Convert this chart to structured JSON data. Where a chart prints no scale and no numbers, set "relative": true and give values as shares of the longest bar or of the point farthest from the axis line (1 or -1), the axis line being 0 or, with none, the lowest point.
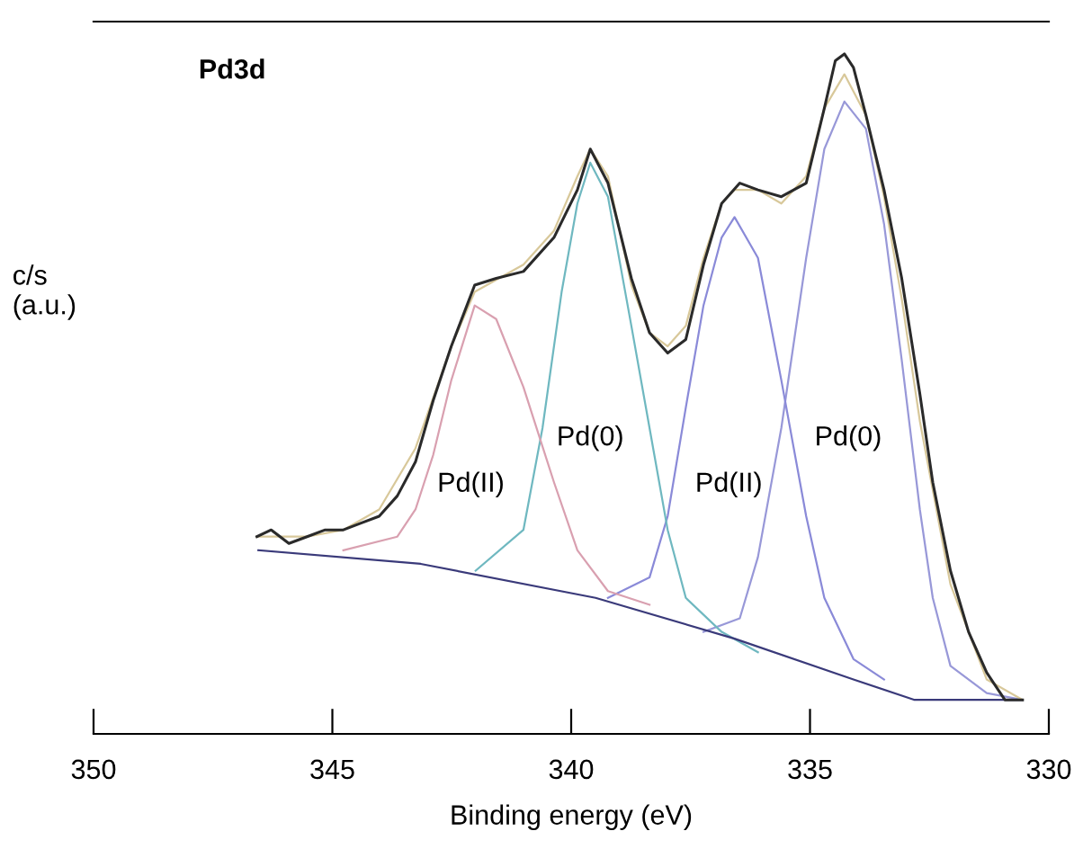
{
  "chart_data": {
    "type": "line",
    "relative": true,
    "xlabel": "Binding energy (eV)",
    "ylabel": "c/s\n(a.u.)",
    "xlim": [
      350,
      330
    ],
    "xticks": [
      350,
      345,
      340,
      335,
      330
    ],
    "grid": false,
    "marker": "none",
    "line_style": "solid",
    "annotations": [
      "Pd3d",
      "Pd(II)",
      "Pd(0)",
      "Pd(II)",
      "Pd(0)"
    ],
    "series": [
      {
        "color": "#9898d8",
        "x": [
          337.23,
          336.47,
          336.09,
          335.6,
          335.08,
          334.7,
          334.28,
          333.83,
          333.45,
          333.08,
          332.7,
          332.43,
          332.06,
          331.3,
          330.55
        ],
        "values": [
          0.15,
          0.17,
          0.26,
          0.45,
          0.7,
          0.86,
          0.93,
          0.89,
          0.75,
          0.55,
          0.33,
          0.2,
          0.1,
          0.06,
          0.05
        ]
      },
      {
        "color": "#8a8ad8",
        "x": [
          339.23,
          338.36,
          337.98,
          337.6,
          337.23,
          336.85,
          336.58,
          336.09,
          335.6,
          335.08,
          334.7,
          334.09,
          333.45
        ],
        "values": [
          0.2,
          0.23,
          0.32,
          0.48,
          0.63,
          0.73,
          0.76,
          0.7,
          0.52,
          0.32,
          0.2,
          0.11,
          0.08
        ]
      },
      {
        "color": "#6fb8c0",
        "x": [
          342.0,
          341.0,
          340.6,
          340.2,
          339.87,
          339.6,
          339.23,
          338.74,
          338.36,
          337.98,
          337.6,
          336.85,
          336.09
        ],
        "values": [
          0.24,
          0.3,
          0.45,
          0.65,
          0.78,
          0.84,
          0.79,
          0.6,
          0.45,
          0.3,
          0.2,
          0.15,
          0.12
        ]
      },
      {
        "color": "#d9a0b0",
        "x": [
          344.77,
          343.64,
          343.26,
          342.89,
          342.51,
          342.02,
          341.57,
          341.0,
          340.36,
          339.87,
          339.23,
          338.36
        ],
        "values": [
          0.27,
          0.29,
          0.33,
          0.41,
          0.52,
          0.63,
          0.61,
          0.51,
          0.37,
          0.27,
          0.21,
          0.19
        ]
      },
      {
        "color": "#3a3a7a",
        "x": [
          346.55,
          343.15,
          339.49,
          336.58,
          334.09,
          332.81,
          330.55
        ],
        "values": [
          0.27,
          0.25,
          0.2,
          0.14,
          0.08,
          0.05,
          0.05
        ]
      },
      {
        "color": "#d8c89a",
        "x": [
          346.58,
          345.53,
          344.77,
          344.02,
          343.26,
          342.51,
          342.02,
          341.0,
          340.36,
          339.87,
          339.6,
          339.23,
          338.74,
          338.36,
          337.98,
          337.6,
          337.23,
          336.85,
          336.58,
          336.09,
          335.6,
          335.08,
          334.7,
          334.28,
          333.83,
          333.45,
          333.08,
          332.7,
          332.06,
          331.3,
          330.55
        ],
        "values": [
          0.29,
          0.29,
          0.3,
          0.33,
          0.42,
          0.57,
          0.65,
          0.69,
          0.74,
          0.82,
          0.86,
          0.82,
          0.66,
          0.59,
          0.57,
          0.6,
          0.7,
          0.78,
          0.8,
          0.8,
          0.78,
          0.82,
          0.92,
          0.97,
          0.91,
          0.79,
          0.64,
          0.46,
          0.22,
          0.08,
          0.05
        ]
      },
      {
        "color": "#2a2a2a",
        "x": [
          346.58,
          346.28,
          345.91,
          345.53,
          345.15,
          344.77,
          344.4,
          344.02,
          343.64,
          343.26,
          342.89,
          342.51,
          342.02,
          341.57,
          341.0,
          340.36,
          339.87,
          339.6,
          339.23,
          338.74,
          338.36,
          337.98,
          337.6,
          337.23,
          336.85,
          336.47,
          336.09,
          335.6,
          335.08,
          334.7,
          334.47,
          334.28,
          334.09,
          333.83,
          333.45,
          333.08,
          332.7,
          332.43,
          332.06,
          331.68,
          331.3,
          330.92,
          330.55
        ],
        "values": [
          0.29,
          0.3,
          0.28,
          0.29,
          0.3,
          0.3,
          0.31,
          0.32,
          0.35,
          0.4,
          0.49,
          0.57,
          0.66,
          0.67,
          0.68,
          0.73,
          0.8,
          0.86,
          0.81,
          0.67,
          0.59,
          0.56,
          0.58,
          0.69,
          0.78,
          0.81,
          0.8,
          0.79,
          0.81,
          0.92,
          0.99,
          1.0,
          0.98,
          0.91,
          0.8,
          0.67,
          0.5,
          0.37,
          0.24,
          0.15,
          0.09,
          0.05,
          0.05
        ]
      }
    ]
  }
}
